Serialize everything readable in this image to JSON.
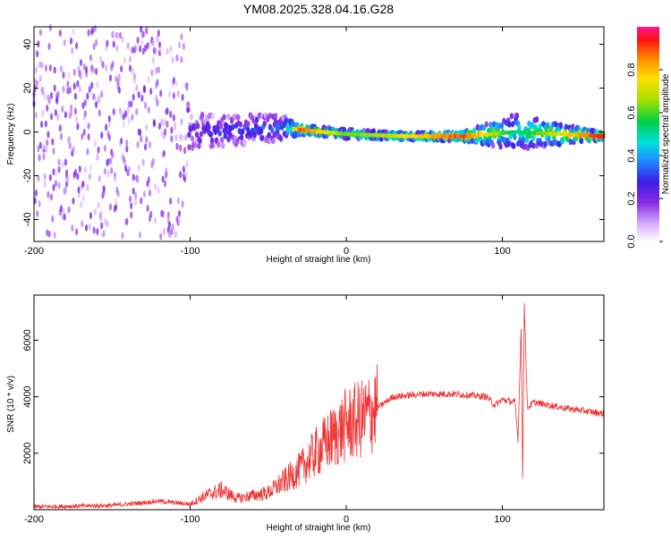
{
  "title": "YM08.2025.328.04.16.G28",
  "chart_data": [
    {
      "type": "heatmap",
      "name": "spectrogram",
      "xlabel": "Height of straight line (km)",
      "ylabel": "Frequency (Hz)",
      "xlim": [
        -200,
        165
      ],
      "ylim": [
        -50,
        48
      ],
      "xticks": [
        -200,
        -100,
        0,
        100
      ],
      "yticks": [
        -40,
        -20,
        0,
        20,
        40
      ],
      "colorbar": {
        "label": "Normalized spectral amplitude",
        "range": [
          0,
          1
        ],
        "ticks": [
          "0.0",
          "0.2",
          "0.4",
          "0.6",
          "0.8"
        ]
      },
      "description_points": [
        {
          "x": -200,
          "f_center": 0,
          "spread": 48,
          "amp": 0.05
        },
        {
          "x": -105,
          "f_center": 0,
          "spread": 48,
          "amp": 0.05
        },
        {
          "x": -100,
          "f_center": 0,
          "spread": 8,
          "amp": 0.25
        },
        {
          "x": -40,
          "f_center": 2,
          "spread": 6,
          "amp": 0.35
        },
        {
          "x": -30,
          "f_center": 1,
          "spread": 2,
          "amp": 0.9
        },
        {
          "x": 0,
          "f_center": -1,
          "spread": 2,
          "amp": 0.6
        },
        {
          "x": 40,
          "f_center": -2,
          "spread": 1.5,
          "amp": 0.75
        },
        {
          "x": 75,
          "f_center": -2,
          "spread": 2,
          "amp": 0.9
        },
        {
          "x": 108,
          "f_center": 0,
          "spread": 8,
          "amp": 0.5
        },
        {
          "x": 165,
          "f_center": -2,
          "spread": 1.5,
          "amp": 0.95
        }
      ]
    },
    {
      "type": "line",
      "name": "snr",
      "xlabel": "Height of straight line (km)",
      "ylabel": "SNR (10 * v/v)",
      "xlim": [
        -200,
        165
      ],
      "ylim": [
        0,
        7600
      ],
      "xticks": [
        -200,
        -100,
        0,
        100
      ],
      "yticks": [
        2000,
        4000,
        6000
      ],
      "color": "#ee3333",
      "x": [
        -200,
        -150,
        -120,
        -100,
        -90,
        -80,
        -70,
        -60,
        -50,
        -40,
        -30,
        -20,
        -10,
        0,
        10,
        20,
        30,
        50,
        70,
        90,
        95,
        100,
        108,
        110,
        112,
        113,
        114,
        116,
        120,
        140,
        165
      ],
      "y": [
        100,
        150,
        300,
        200,
        500,
        700,
        400,
        500,
        600,
        1000,
        1400,
        2000,
        2500,
        3000,
        3200,
        3600,
        4000,
        4100,
        4100,
        4000,
        3700,
        3900,
        3800,
        2500,
        6500,
        1000,
        7400,
        3600,
        3800,
        3600,
        3400
      ]
    }
  ]
}
